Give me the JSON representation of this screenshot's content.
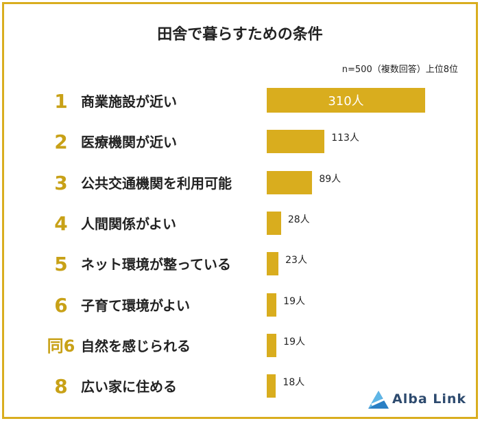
{
  "title": "田舎で暮らすための条件",
  "note": "n=500（複数回答）上位8位",
  "brand": {
    "name": "Alba Link",
    "color": "#2d4a6e",
    "icon": "alba-link-logo-icon"
  },
  "colors": {
    "accent": "#d9ad1e",
    "rank": "#c8a117",
    "frame": "#d9ad1e"
  },
  "chart_data": {
    "type": "bar",
    "orientation": "horizontal",
    "title": "田舎で暮らすための条件",
    "unit": "人",
    "ranks": [
      "1",
      "2",
      "3",
      "4",
      "5",
      "6",
      "同6",
      "8"
    ],
    "categories": [
      "商業施設が近い",
      "医療機関が近い",
      "公共交通機関を利用可能",
      "人間関係がよい",
      "ネット環境が整っている",
      "子育て環境がよい",
      "自然を感じられる",
      "広い家に住める"
    ],
    "values": [
      310,
      113,
      89,
      28,
      23,
      19,
      19,
      18
    ],
    "value_labels": [
      "310人",
      "113人",
      "89人",
      "28人",
      "23人",
      "19人",
      "19人",
      "18人"
    ],
    "legend": "none",
    "grid": false
  }
}
